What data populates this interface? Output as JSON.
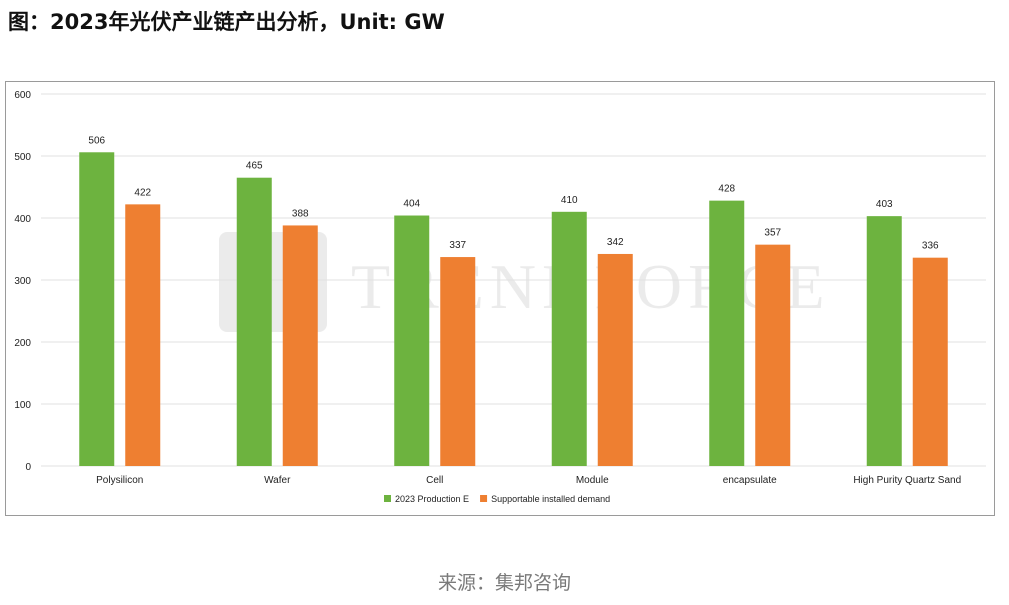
{
  "title": "图：2023年光伏产业链产出分析，Unit: GW",
  "source": "来源：集邦咨询",
  "watermark": "TRENDFORCE",
  "colors": {
    "series1": "#6db33f",
    "series2": "#ee7f31",
    "grid": "#e2e2e2",
    "text": "#222222"
  },
  "chart_data": {
    "type": "bar",
    "categories": [
      "Polysilicon",
      "Wafer",
      "Cell",
      "Module",
      "encapsulate",
      "High Purity Quartz Sand"
    ],
    "series": [
      {
        "name": "2023 Production E",
        "values": [
          506,
          465,
          404,
          410,
          428,
          403
        ]
      },
      {
        "name": "Supportable installed demand",
        "values": [
          422,
          388,
          337,
          342,
          357,
          336
        ]
      }
    ],
    "yticks": [
      0,
      100,
      200,
      300,
      400,
      500,
      600
    ],
    "ylim": [
      0,
      600
    ],
    "grid": true,
    "legend": "bottom"
  }
}
